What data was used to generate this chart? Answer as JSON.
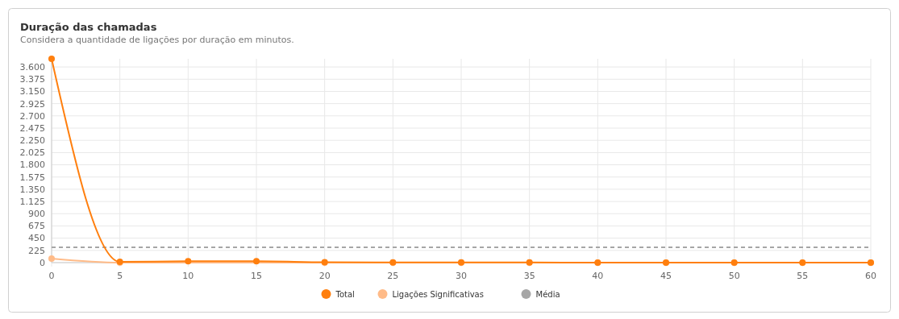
{
  "chart_data": {
    "type": "line",
    "title": "Duração das chamadas",
    "subtitle": "Considera a quantidade de ligações por duração em minutos.",
    "x": [
      0,
      5,
      10,
      15,
      20,
      25,
      30,
      35,
      40,
      45,
      50,
      55,
      60
    ],
    "series": [
      {
        "name": "Total",
        "color": "#ff7f0e",
        "values": [
          3750,
          15,
          25,
          25,
          8,
          4,
          2,
          2,
          1,
          1,
          1,
          1,
          1
        ],
        "marker": "circle",
        "line_style": "solid"
      },
      {
        "name": "Ligações Significativas",
        "color": "#ffbb88",
        "values": [
          75,
          0,
          null,
          null,
          0,
          0,
          0,
          0,
          0,
          0,
          0,
          0,
          0
        ],
        "marker": "circle",
        "line_style": "solid"
      },
      {
        "name": "Média",
        "color": "#a6a6a6",
        "values": [
          280,
          280,
          280,
          280,
          280,
          280,
          280,
          280,
          280,
          280,
          280,
          280,
          280
        ],
        "marker": "none",
        "line_style": "dashed"
      }
    ],
    "xlim": [
      0,
      60
    ],
    "xticks": [
      0,
      5,
      10,
      15,
      20,
      25,
      30,
      35,
      40,
      45,
      50,
      55,
      60
    ],
    "ylim": [
      0,
      3750
    ],
    "yticks": [
      {
        "value": 0,
        "label": "0"
      },
      {
        "value": 225,
        "label": "225"
      },
      {
        "value": 450,
        "label": "450"
      },
      {
        "value": 675,
        "label": "675"
      },
      {
        "value": 900,
        "label": "900"
      },
      {
        "value": 1125,
        "label": "1.125"
      },
      {
        "value": 1350,
        "label": "1.350"
      },
      {
        "value": 1575,
        "label": "1.575"
      },
      {
        "value": 1800,
        "label": "1.800"
      },
      {
        "value": 2025,
        "label": "2.025"
      },
      {
        "value": 2250,
        "label": "2.250"
      },
      {
        "value": 2475,
        "label": "2.475"
      },
      {
        "value": 2700,
        "label": "2.700"
      },
      {
        "value": 2925,
        "label": "2.925"
      },
      {
        "value": 3150,
        "label": "3.150"
      },
      {
        "value": 3375,
        "label": "3.375"
      },
      {
        "value": 3600,
        "label": "3.600"
      }
    ],
    "grid": true,
    "legend": "bottom"
  }
}
